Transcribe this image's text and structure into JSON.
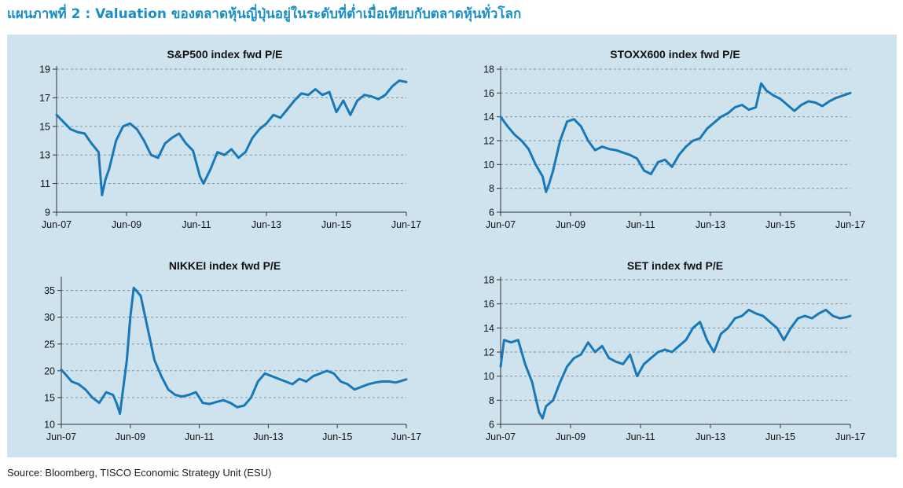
{
  "page": {
    "title": "แผนภาพที่ 2 : Valuation ของตลาดหุ้นญี่ปุ่นอยู่ในระดับที่ต่ำเมื่อเทียบกับตลาดหุ้นทั่วโลก",
    "source": "Source: Bloomberg, TISCO Economic Strategy Unit (ESU)"
  },
  "colors": {
    "line": "#1878b8",
    "panel": "#cfe3ef",
    "title": "#1a8fc7"
  },
  "chart_data": [
    {
      "type": "line",
      "title": "S&P500 index fwd P/E",
      "x_ticks": [
        "Jun-07",
        "Jun-09",
        "Jun-11",
        "Jun-13",
        "Jun-15",
        "Jun-17"
      ],
      "y_ticks": [
        9,
        11,
        13,
        15,
        17,
        19
      ],
      "ylim": [
        9,
        19
      ],
      "xlim": [
        2007.5,
        2017.5
      ],
      "grid": "horizontal-dashed",
      "series": [
        {
          "x": [
            2007.5,
            2007.7,
            2007.9,
            2008.1,
            2008.3,
            2008.5,
            2008.7,
            2008.8,
            2008.9,
            2009.0,
            2009.2,
            2009.4,
            2009.6,
            2009.8,
            2010.0,
            2010.2,
            2010.4,
            2010.6,
            2010.8,
            2011.0,
            2011.2,
            2011.4,
            2011.6,
            2011.7,
            2011.9,
            2012.1,
            2012.3,
            2012.5,
            2012.7,
            2012.9,
            2013.1,
            2013.3,
            2013.5,
            2013.7,
            2013.9,
            2014.1,
            2014.3,
            2014.5,
            2014.7,
            2014.9,
            2015.1,
            2015.3,
            2015.5,
            2015.7,
            2015.9,
            2016.1,
            2016.3,
            2016.5,
            2016.7,
            2016.9,
            2017.1,
            2017.3,
            2017.5
          ],
          "values": [
            15.8,
            15.3,
            14.8,
            14.6,
            14.5,
            13.8,
            13.2,
            10.2,
            11.3,
            12.0,
            14.0,
            15.0,
            15.2,
            14.8,
            14.0,
            13.0,
            12.8,
            13.8,
            14.2,
            14.5,
            13.8,
            13.3,
            11.5,
            11.0,
            12.0,
            13.2,
            13.0,
            13.4,
            12.8,
            13.2,
            14.2,
            14.8,
            15.2,
            15.8,
            15.6,
            16.2,
            16.8,
            17.3,
            17.2,
            17.6,
            17.2,
            17.4,
            16.0,
            16.8,
            15.8,
            16.8,
            17.2,
            17.1,
            16.9,
            17.2,
            17.8,
            18.2,
            18.1
          ]
        }
      ]
    },
    {
      "type": "line",
      "title": "STOXX600 index fwd P/E",
      "x_ticks": [
        "Jun-07",
        "Jun-09",
        "Jun-11",
        "Jun-13",
        "Jun-15",
        "Jun-17"
      ],
      "y_ticks": [
        6,
        8,
        10,
        12,
        14,
        16,
        18
      ],
      "ylim": [
        6,
        18
      ],
      "xlim": [
        2007.5,
        2017.5
      ],
      "grid": "horizontal-dashed",
      "series": [
        {
          "x": [
            2007.5,
            2007.7,
            2007.9,
            2008.1,
            2008.3,
            2008.5,
            2008.7,
            2008.8,
            2008.9,
            2009.0,
            2009.2,
            2009.4,
            2009.6,
            2009.8,
            2010.0,
            2010.2,
            2010.4,
            2010.6,
            2010.8,
            2011.0,
            2011.2,
            2011.4,
            2011.6,
            2011.8,
            2012.0,
            2012.2,
            2012.4,
            2012.6,
            2012.8,
            2013.0,
            2013.2,
            2013.4,
            2013.6,
            2013.8,
            2014.0,
            2014.2,
            2014.4,
            2014.6,
            2014.8,
            2014.95,
            2015.1,
            2015.3,
            2015.5,
            2015.7,
            2015.9,
            2016.1,
            2016.3,
            2016.5,
            2016.7,
            2016.9,
            2017.1,
            2017.3,
            2017.5
          ],
          "values": [
            14.0,
            13.2,
            12.5,
            12.0,
            11.3,
            10.0,
            9.0,
            7.7,
            8.5,
            9.5,
            12.0,
            13.6,
            13.8,
            13.2,
            12.0,
            11.2,
            11.5,
            11.3,
            11.2,
            11.0,
            10.8,
            10.5,
            9.5,
            9.2,
            10.2,
            10.4,
            9.8,
            10.8,
            11.5,
            12.0,
            12.2,
            13.0,
            13.5,
            14.0,
            14.3,
            14.8,
            15.0,
            14.6,
            14.8,
            16.8,
            16.2,
            15.8,
            15.5,
            15.0,
            14.5,
            15.0,
            15.3,
            15.2,
            14.9,
            15.3,
            15.6,
            15.8,
            16.0
          ]
        }
      ]
    },
    {
      "type": "line",
      "title": "NIKKEI index fwd P/E",
      "x_ticks": [
        "Jun-07",
        "Jun-09",
        "Jun-11",
        "Jun-13",
        "Jun-15",
        "Jun-17"
      ],
      "y_ticks": [
        10,
        15,
        20,
        25,
        30,
        35
      ],
      "ylim": [
        10,
        37
      ],
      "xlim": [
        2007.5,
        2017.5
      ],
      "grid": "horizontal-dashed",
      "series": [
        {
          "x": [
            2007.5,
            2007.6,
            2007.8,
            2008.0,
            2008.2,
            2008.4,
            2008.6,
            2008.8,
            2009.0,
            2009.1,
            2009.2,
            2009.4,
            2009.5,
            2009.6,
            2009.8,
            2010.0,
            2010.2,
            2010.4,
            2010.6,
            2010.8,
            2011.0,
            2011.2,
            2011.4,
            2011.6,
            2011.8,
            2012.0,
            2012.2,
            2012.4,
            2012.6,
            2012.8,
            2013.0,
            2013.2,
            2013.4,
            2013.6,
            2013.8,
            2014.0,
            2014.2,
            2014.4,
            2014.6,
            2014.8,
            2015.0,
            2015.2,
            2015.4,
            2015.6,
            2015.8,
            2016.0,
            2016.2,
            2016.4,
            2016.6,
            2016.8,
            2017.0,
            2017.2,
            2017.4,
            2017.5
          ],
          "values": [
            20.2,
            19.5,
            18.0,
            17.5,
            16.5,
            15.0,
            14.0,
            16.0,
            15.5,
            14.0,
            12.0,
            22.0,
            30.0,
            35.5,
            34.0,
            28.0,
            22.0,
            19.0,
            16.5,
            15.5,
            15.2,
            15.5,
            16.0,
            14.0,
            13.8,
            14.2,
            14.5,
            14.0,
            13.2,
            13.5,
            15.0,
            18.0,
            19.5,
            19.0,
            18.5,
            18.0,
            17.5,
            18.5,
            18.0,
            19.0,
            19.5,
            20.0,
            19.5,
            18.0,
            17.5,
            16.5,
            17.0,
            17.5,
            17.8,
            18.0,
            18.0,
            17.8,
            18.2,
            18.4
          ]
        }
      ]
    },
    {
      "type": "line",
      "title": "SET index fwd P/E",
      "x_ticks": [
        "Jun-07",
        "Jun-09",
        "Jun-11",
        "Jun-13",
        "Jun-15",
        "Jun-17"
      ],
      "y_ticks": [
        6,
        8,
        10,
        12,
        14,
        16,
        18
      ],
      "ylim": [
        6,
        18
      ],
      "xlim": [
        2007.5,
        2017.5
      ],
      "grid": "horizontal-dashed",
      "series": [
        {
          "x": [
            2007.5,
            2007.6,
            2007.8,
            2008.0,
            2008.2,
            2008.4,
            2008.6,
            2008.7,
            2008.8,
            2009.0,
            2009.2,
            2009.4,
            2009.6,
            2009.8,
            2010.0,
            2010.2,
            2010.4,
            2010.6,
            2010.8,
            2011.0,
            2011.2,
            2011.4,
            2011.6,
            2011.8,
            2012.0,
            2012.2,
            2012.4,
            2012.6,
            2012.8,
            2013.0,
            2013.2,
            2013.4,
            2013.6,
            2013.8,
            2014.0,
            2014.2,
            2014.4,
            2014.6,
            2014.8,
            2015.0,
            2015.2,
            2015.4,
            2015.6,
            2015.8,
            2016.0,
            2016.2,
            2016.4,
            2016.6,
            2016.8,
            2017.0,
            2017.2,
            2017.4,
            2017.5
          ],
          "values": [
            10.8,
            13.0,
            12.8,
            13.0,
            11.0,
            9.5,
            7.0,
            6.5,
            7.5,
            8.0,
            9.5,
            10.8,
            11.5,
            11.8,
            12.8,
            12.0,
            12.5,
            11.5,
            11.2,
            11.0,
            11.8,
            10.0,
            11.0,
            11.5,
            12.0,
            12.2,
            12.0,
            12.5,
            13.0,
            14.0,
            14.5,
            13.0,
            12.0,
            13.5,
            14.0,
            14.8,
            15.0,
            15.5,
            15.2,
            15.0,
            14.5,
            14.0,
            13.0,
            14.0,
            14.8,
            15.0,
            14.8,
            15.2,
            15.5,
            15.0,
            14.8,
            14.9,
            15.0
          ]
        }
      ]
    }
  ]
}
